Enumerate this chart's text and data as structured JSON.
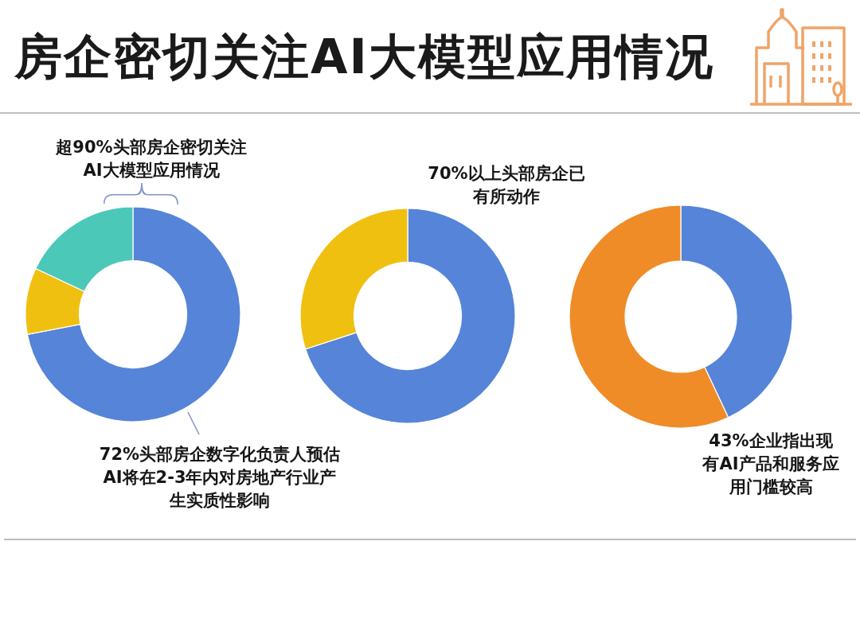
{
  "chart_data": [
    {
      "type": "donut",
      "title": "房企密切关注AI大模型应用情况",
      "categories": [
        null,
        null,
        null
      ],
      "values": [
        72,
        10,
        18
      ],
      "colors": [
        "#5584d8",
        "#f0c010",
        "#4cc8b9"
      ],
      "annotations": [
        "超90%头部房企密切关注AI大模型应用情况",
        "72%头部房企数字化负责人预估AI将在2-3年内对房地产行业产生实质性影响"
      ]
    },
    {
      "type": "donut",
      "categories": [
        null,
        null
      ],
      "values": [
        70,
        30
      ],
      "colors": [
        "#5584d8",
        "#f0c010"
      ],
      "annotations": [
        "70%以上头部房企已有所动作"
      ]
    },
    {
      "type": "donut",
      "categories": [
        null,
        null
      ],
      "values": [
        43,
        57
      ],
      "colors": [
        "#5584d8",
        "#ef8c28"
      ],
      "annotations": [
        "43%企业指出现有AI产品和服务应用门槛较高"
      ]
    }
  ]
}
